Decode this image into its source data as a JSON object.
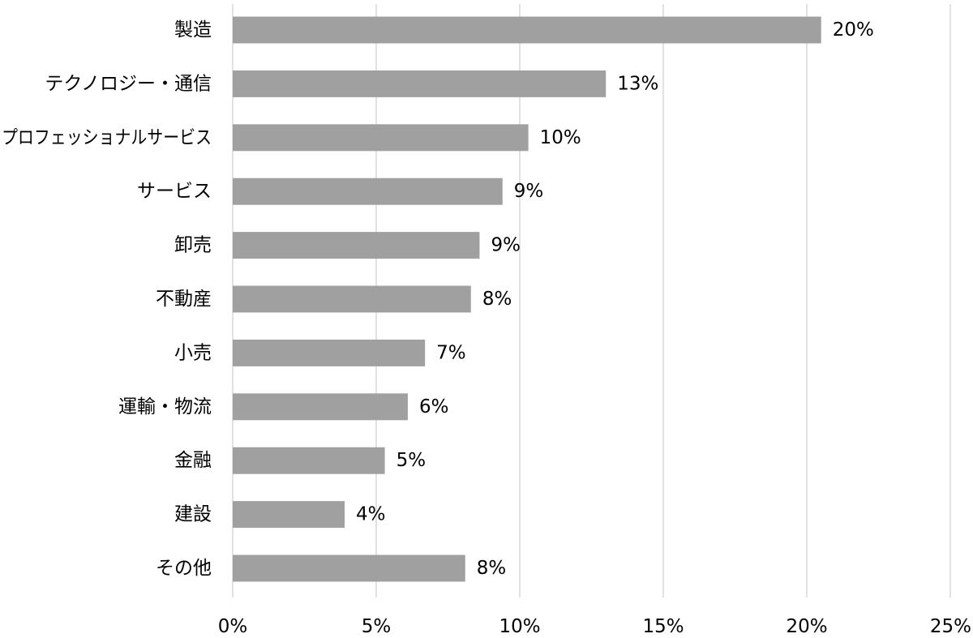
{
  "chart_data": {
    "type": "bar",
    "orientation": "horizontal",
    "categories": [
      "製造",
      "テクノロジー・通信",
      "プロフェッショナルサービス",
      "サービス",
      "卸売",
      "不動産",
      "小売",
      "運輸・物流",
      "金融",
      "建設",
      "その他"
    ],
    "values": [
      20.5,
      13.0,
      10.3,
      9.4,
      8.6,
      8.3,
      6.7,
      6.1,
      5.3,
      3.9,
      8.1
    ],
    "value_labels": [
      "20%",
      "13%",
      "10%",
      "9%",
      "9%",
      "8%",
      "7%",
      "6%",
      "5%",
      "4%",
      "8%"
    ],
    "x_ticks": [
      0,
      5,
      10,
      15,
      20,
      25
    ],
    "x_tick_labels": [
      "0%",
      "5%",
      "10%",
      "15%",
      "20%",
      "25%"
    ],
    "xlim": [
      0,
      25
    ],
    "grid": "vertical",
    "legend": "none",
    "title": "",
    "xlabel": "",
    "ylabel": "",
    "colors": {
      "bar": "#a0a0a0",
      "grid": "#d9d9d9",
      "text": "#000000"
    }
  }
}
